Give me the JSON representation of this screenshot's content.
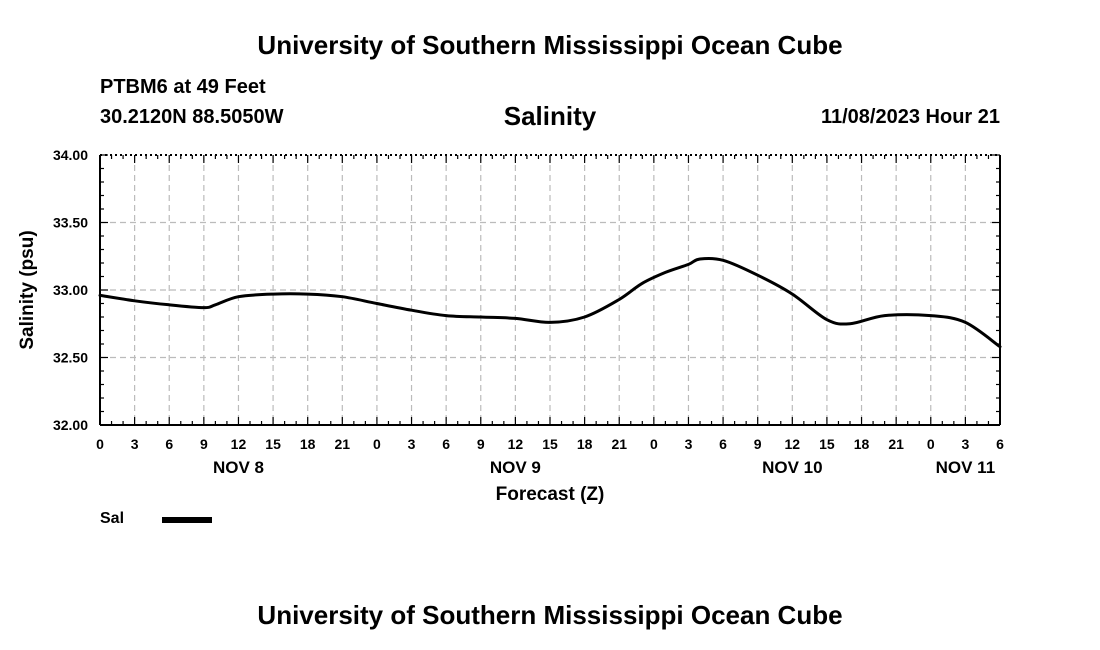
{
  "header": {
    "title": "University of Southern Mississippi Ocean Cube",
    "station": "PTBM6 at 49 Feet",
    "coords": "30.2120N  88.5050W",
    "datetime": "11/08/2023 Hour 21",
    "footer_title": "University of Southern Mississippi Ocean Cube"
  },
  "legend": {
    "label": "Sal"
  },
  "colors": {
    "line": "#000000",
    "grid": "#bbbbbb"
  },
  "chart_data": {
    "type": "line",
    "title": "Salinity",
    "xlabel": "Forecast (Z)",
    "ylabel": "Salinity (psu)",
    "ylim": [
      32.0,
      34.0
    ],
    "yticks": [
      32.0,
      32.5,
      33.0,
      33.5,
      34.0
    ],
    "ytick_labels": [
      "32.00",
      "32.50",
      "33.00",
      "33.50",
      "34.00"
    ],
    "xlim": [
      0,
      78
    ],
    "x_units": "hours from NOV 8 00Z",
    "xtick_hours": [
      0,
      3,
      6,
      9,
      12,
      15,
      18,
      21,
      24,
      27,
      30,
      33,
      36,
      39,
      42,
      45,
      48,
      51,
      54,
      57,
      60,
      63,
      66,
      69,
      72,
      75,
      78
    ],
    "xtick_labels": [
      "0",
      "3",
      "6",
      "9",
      "12",
      "15",
      "18",
      "21",
      "0",
      "3",
      "6",
      "9",
      "12",
      "15",
      "18",
      "21",
      "0",
      "3",
      "6",
      "9",
      "12",
      "15",
      "18",
      "21",
      "0",
      "3",
      "6"
    ],
    "day_labels": [
      {
        "hour": 12,
        "label": "NOV 8"
      },
      {
        "hour": 36,
        "label": "NOV 9"
      },
      {
        "hour": 60,
        "label": "NOV 10"
      },
      {
        "hour": 75,
        "label": "NOV 11"
      }
    ],
    "grid": true,
    "series": [
      {
        "name": "Sal",
        "x": [
          0,
          3,
          6,
          9,
          10,
          12,
          15,
          18,
          21,
          24,
          27,
          30,
          33,
          36,
          39,
          42,
          45,
          47,
          49,
          51,
          52,
          54,
          57,
          60,
          63,
          65,
          68,
          72,
          75,
          78
        ],
        "values": [
          32.96,
          32.92,
          32.89,
          32.87,
          32.89,
          32.95,
          32.97,
          32.97,
          32.95,
          32.9,
          32.85,
          32.81,
          32.8,
          32.79,
          32.76,
          32.8,
          32.93,
          33.05,
          33.13,
          33.19,
          33.23,
          33.22,
          33.11,
          32.97,
          32.78,
          32.75,
          32.81,
          32.81,
          32.76,
          32.58
        ]
      }
    ]
  }
}
